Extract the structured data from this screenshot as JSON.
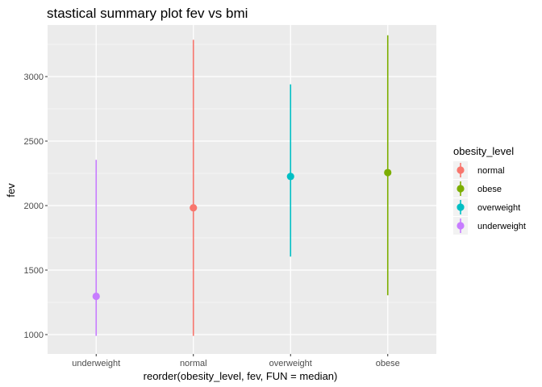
{
  "chart_data": {
    "type": "pointrange",
    "title": "stastical summary plot  fev vs bmi",
    "xlabel": "reorder(obesity_level, fev, FUN = median)",
    "ylabel": "fev",
    "categories": [
      "underweight",
      "normal",
      "overweight",
      "obese"
    ],
    "ylim": [
      850,
      3400
    ],
    "yticks": [
      1000,
      1500,
      2000,
      2500,
      3000
    ],
    "ytick_labels": [
      "1000",
      "1500",
      "2000",
      "2500",
      "3000"
    ],
    "grid": true,
    "legend": {
      "title": "obesity_level",
      "placement": "right",
      "entries": [
        "normal",
        "obese",
        "overweight",
        "underweight"
      ]
    },
    "colors": {
      "normal": "#F8766D",
      "obese": "#7CAE00",
      "overweight": "#00BFC4",
      "underweight": "#C77CFF",
      "panel": "#EBEBEB",
      "gridline": "#FFFFFF"
    },
    "series": [
      {
        "name": "underweight",
        "x": "underweight",
        "y": 1297,
        "ymin": 990,
        "ymax": 2355
      },
      {
        "name": "normal",
        "x": "normal",
        "y": 1983,
        "ymin": 990,
        "ymax": 3285
      },
      {
        "name": "overweight",
        "x": "overweight",
        "y": 2226,
        "ymin": 1605,
        "ymax": 2940
      },
      {
        "name": "obese",
        "x": "obese",
        "y": 2256,
        "ymin": 1305,
        "ymax": 3320
      }
    ]
  }
}
